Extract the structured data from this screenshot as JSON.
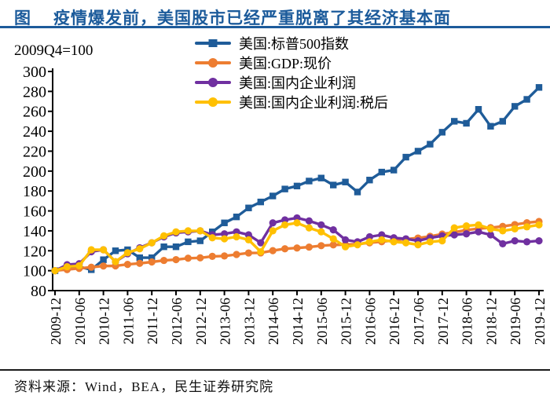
{
  "header": {
    "figure_label": "图",
    "title": "疫情爆发前，美国股市已经严重脱离了其经济基本面"
  },
  "footer": {
    "source": "资料来源：Wind，BEA，民生证券研究院"
  },
  "colors": {
    "accent_blue": "#1c5b9b",
    "footer_rule": "#1a1a1a",
    "axis": "#000000"
  },
  "chart_data": {
    "type": "line",
    "index_note": "2009Q4=100",
    "grid": false,
    "legend_position": "top-inside",
    "ylim": [
      80,
      300
    ],
    "y_ticks": [
      80,
      100,
      120,
      140,
      160,
      180,
      200,
      220,
      240,
      260,
      280,
      300
    ],
    "x": [
      "2009-12",
      "2010-03",
      "2010-06",
      "2010-09",
      "2010-12",
      "2011-03",
      "2011-06",
      "2011-09",
      "2011-12",
      "2012-03",
      "2012-06",
      "2012-09",
      "2012-12",
      "2013-03",
      "2013-06",
      "2013-09",
      "2013-12",
      "2014-03",
      "2014-06",
      "2014-09",
      "2014-12",
      "2015-03",
      "2015-06",
      "2015-09",
      "2015-12",
      "2016-03",
      "2016-06",
      "2016-09",
      "2016-12",
      "2017-03",
      "2017-06",
      "2017-09",
      "2017-12",
      "2018-03",
      "2018-06",
      "2018-09",
      "2018-12",
      "2019-03",
      "2019-06",
      "2019-09",
      "2019-12"
    ],
    "x_tick_labels": [
      "2009-12",
      "2010-06",
      "2010-12",
      "2011-06",
      "2011-12",
      "2012-06",
      "2012-12",
      "2013-06",
      "2013-12",
      "2014-06",
      "2014-12",
      "2015-06",
      "2015-12",
      "2016-06",
      "2016-12",
      "2017-06",
      "2017-12",
      "2018-06",
      "2018-12",
      "2019-06",
      "2019-12"
    ],
    "series": [
      {
        "name": "美国:标普500指数",
        "color": "#1f5c99",
        "marker": "square",
        "values": [
          100,
          103,
          104,
          101,
          111,
          120,
          121,
          113,
          113,
          124,
          124,
          129,
          130,
          139,
          148,
          154,
          163,
          169,
          175,
          182,
          185,
          190,
          193,
          186,
          189,
          179,
          191,
          199,
          201,
          214,
          220,
          227,
          239,
          250,
          248,
          262,
          245,
          250,
          265,
          272,
          284
        ]
      },
      {
        "name": "美国:GDP:现价",
        "color": "#ed7d31",
        "marker": "circle",
        "values": [
          100,
          101.1,
          102.3,
          103.5,
          104.7,
          104.8,
          106.3,
          107.4,
          108.8,
          110.3,
          111.1,
          112.5,
          112.9,
          114.4,
          114.8,
          116.3,
          117.8,
          117.9,
          120.1,
          122,
          122.8,
          123.7,
          125.1,
          125.9,
          126.1,
          126.7,
          128,
          129.1,
          130.4,
          131.7,
          132.8,
          134.5,
          136.8,
          138.6,
          140.8,
          142.3,
          143.2,
          144.5,
          146.3,
          148.1,
          149.4
        ]
      },
      {
        "name": "美国:国内企业利润",
        "color": "#7030a0",
        "marker": "circle",
        "values": [
          100,
          106,
          107,
          119,
          121,
          109,
          117,
          123,
          128,
          134,
          138,
          139,
          140,
          136,
          137,
          139,
          136,
          128,
          148,
          151,
          153,
          150,
          146,
          141,
          131,
          129,
          134,
          136,
          133,
          132,
          130,
          133,
          135,
          136,
          137,
          139,
          136,
          127,
          130,
          129,
          130
        ]
      },
      {
        "name": "美国:国内企业利润:税后",
        "color": "#ffc000",
        "marker": "circle",
        "values": [
          100,
          104,
          105,
          121,
          121,
          109,
          118,
          122,
          128,
          135,
          139,
          140,
          140,
          133,
          132,
          134,
          131,
          119,
          140,
          146,
          148,
          143,
          139,
          132,
          124,
          126,
          129,
          131,
          129,
          128,
          126,
          129,
          130,
          143,
          145,
          146,
          142,
          140,
          142,
          144,
          146
        ]
      }
    ]
  }
}
